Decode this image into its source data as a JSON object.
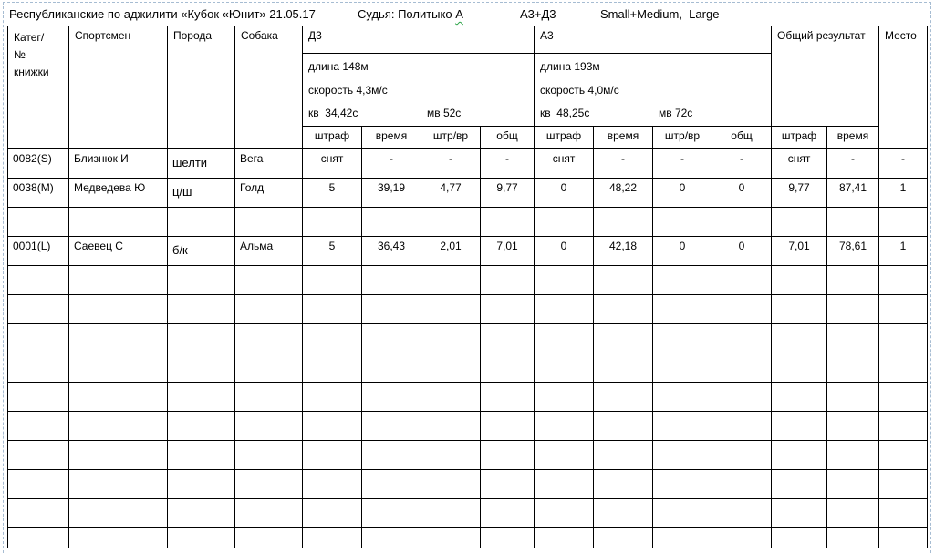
{
  "title_row": {
    "event": "Республиканские по аджилити «Кубок «Юнит» 21.05.17",
    "judge": "Судья: Политыко",
    "judge_flagged": "А",
    "classes": "А3+Д3",
    "sizes": "Small+Medium,  Large"
  },
  "table": {
    "header": {
      "category": "Катег/\n№\nкнижки",
      "athlete": "Спортсмен",
      "breed": "Порода",
      "dog": "Собака",
      "d3": {
        "label": "Д3",
        "length": "длина 148м",
        "speed": "скорость 4,3м/с",
        "kv": "кв  34,42с",
        "mv": "мв 52с"
      },
      "a3": {
        "label": "А3",
        "length": "длина 193м",
        "speed": "скорость 4,0м/с",
        "kv": "кв  48,25с",
        "mv": "мв 72с"
      },
      "total": "Общий результат",
      "place": "Место"
    },
    "subheaders": [
      "штраф",
      "время",
      "штр/вр",
      "общ",
      "штраф",
      "время",
      "штр/вр",
      "общ",
      "штраф",
      "время"
    ],
    "rows": [
      [
        "0082(S)",
        "Близнюк И",
        "шелти",
        "Вега",
        "снят",
        "-",
        "-",
        "-",
        "снят",
        "-",
        "-",
        "-",
        "снят",
        "-",
        "-"
      ],
      [
        "0038(M)",
        "Медведева Ю",
        "ц/ш",
        "Голд",
        "5",
        "39,19",
        "4,77",
        "9,77",
        "0",
        "48,22",
        "0",
        "0",
        "9,77",
        "87,41",
        "1"
      ],
      [
        "",
        "",
        "",
        "",
        "",
        "",
        "",
        "",
        "",
        "",
        "",
        "",
        "",
        "",
        ""
      ],
      [
        "0001(L)",
        "Саевец С",
        "б/к",
        "Альма",
        "5",
        "36,43",
        "2,01",
        "7,01",
        "0",
        "42,18",
        "0",
        "0",
        "7,01",
        "78,61",
        "1"
      ],
      [
        "",
        "",
        "",
        "",
        "",
        "",
        "",
        "",
        "",
        "",
        "",
        "",
        "",
        "",
        ""
      ],
      [
        "",
        "",
        "",
        "",
        "",
        "",
        "",
        "",
        "",
        "",
        "",
        "",
        "",
        "",
        ""
      ],
      [
        "",
        "",
        "",
        "",
        "",
        "",
        "",
        "",
        "",
        "",
        "",
        "",
        "",
        "",
        ""
      ],
      [
        "",
        "",
        "",
        "",
        "",
        "",
        "",
        "",
        "",
        "",
        "",
        "",
        "",
        "",
        ""
      ],
      [
        "",
        "",
        "",
        "",
        "",
        "",
        "",
        "",
        "",
        "",
        "",
        "",
        "",
        "",
        ""
      ],
      [
        "",
        "",
        "",
        "",
        "",
        "",
        "",
        "",
        "",
        "",
        "",
        "",
        "",
        "",
        ""
      ],
      [
        "",
        "",
        "",
        "",
        "",
        "",
        "",
        "",
        "",
        "",
        "",
        "",
        "",
        "",
        ""
      ],
      [
        "",
        "",
        "",
        "",
        "",
        "",
        "",
        "",
        "",
        "",
        "",
        "",
        "",
        "",
        ""
      ],
      [
        "",
        "",
        "",
        "",
        "",
        "",
        "",
        "",
        "",
        "",
        "",
        "",
        "",
        "",
        ""
      ],
      [
        "",
        "",
        "",
        "",
        "",
        "",
        "",
        "",
        "",
        "",
        "",
        "",
        "",
        "",
        ""
      ]
    ]
  },
  "colors": {
    "grid": "#000000",
    "page_boundary_dash": "#a6bcd2",
    "spellcheck_green": "#27a243"
  }
}
